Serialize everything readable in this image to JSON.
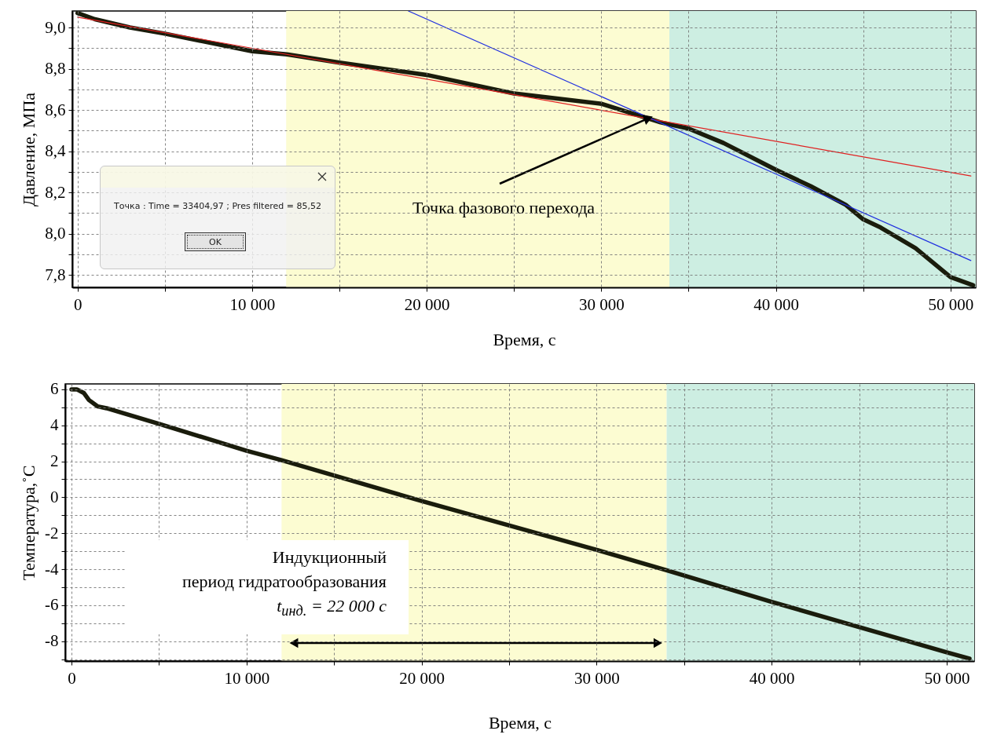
{
  "chart_data": [
    {
      "type": "line",
      "xlabel": "Время, с",
      "ylabel": "Давление, МПа",
      "xlim": [
        -300,
        51450
      ],
      "ylim": [
        7.74,
        9.08
      ],
      "xticks": [
        0,
        {
          "value": 5000,
          "label": null
        },
        {
          "value": 10000,
          "label": "10 000"
        },
        {
          "value": 15000,
          "label": null
        },
        {
          "value": 20000,
          "label": "20 000"
        },
        {
          "value": 25000,
          "label": null
        },
        {
          "value": 30000,
          "label": "30 000"
        },
        {
          "value": 35000,
          "label": null
        },
        {
          "value": 40000,
          "label": "40 000"
        },
        {
          "value": 45000,
          "label": null
        },
        {
          "value": 50000,
          "label": "50 000"
        }
      ],
      "yticks": [
        {
          "value": 7.8,
          "label": "7,8"
        },
        {
          "value": 7.9,
          "label": null
        },
        {
          "value": 8.0,
          "label": "8,0"
        },
        {
          "value": 8.1,
          "label": null
        },
        {
          "value": 8.2,
          "label": "8,2"
        },
        {
          "value": 8.3,
          "label": null
        },
        {
          "value": 8.4,
          "label": "8,4"
        },
        {
          "value": 8.5,
          "label": null
        },
        {
          "value": 8.6,
          "label": "8,6"
        },
        {
          "value": 8.7,
          "label": null
        },
        {
          "value": 8.8,
          "label": "8,8"
        },
        {
          "value": 8.9,
          "label": null
        },
        {
          "value": 9.0,
          "label": "9,0"
        }
      ],
      "grid": true,
      "bands": [
        {
          "axis": "x",
          "from": 11950,
          "to": 33900,
          "color": "#fcfcd2"
        },
        {
          "axis": "x",
          "from": 33900,
          "to": 51450,
          "color": "#cdeee2"
        }
      ],
      "series": [
        {
          "type": "line",
          "color": "#1a1c0c",
          "x": [
            0,
            1000,
            3000,
            5000,
            10000,
            12000,
            15000,
            20000,
            25000,
            30000,
            33400,
            35000,
            37000,
            40000,
            42000,
            44000,
            45000,
            46000,
            48000,
            50000,
            51300
          ],
          "values": [
            9.07,
            9.04,
            9.0,
            8.97,
            8.885,
            8.87,
            8.83,
            8.77,
            8.68,
            8.63,
            8.54,
            8.51,
            8.44,
            8.31,
            8.23,
            8.14,
            8.07,
            8.03,
            7.93,
            7.79,
            7.75
          ]
        },
        {
          "type": "line",
          "color": "#e02020",
          "x": [
            0,
            51170
          ],
          "values": [
            9.05,
            8.28
          ]
        },
        {
          "type": "line",
          "color": "#2030e0",
          "x": [
            18950,
            51170
          ],
          "values": [
            9.08,
            7.87
          ]
        }
      ],
      "annotations": [
        {
          "text": "Точка фазового перехода",
          "x": 32700,
          "y": 8.56
        },
        "Точка : Time = 33404,97 ; Pres filtered = 85,52",
        "OK"
      ]
    },
    {
      "type": "line",
      "xlabel": "Время, с",
      "ylabel": "Температура,˚C",
      "xlim": [
        -360,
        51570
      ],
      "ylim": [
        -9.1,
        6.3
      ],
      "xticks": [
        0,
        {
          "value": 5000,
          "label": null
        },
        {
          "value": 10000,
          "label": "10 000"
        },
        {
          "value": 15000,
          "label": null
        },
        {
          "value": 20000,
          "label": "20 000"
        },
        {
          "value": 25000,
          "label": null
        },
        {
          "value": 30000,
          "label": "30 000"
        },
        {
          "value": 35000,
          "label": null
        },
        {
          "value": 40000,
          "label": "40 000"
        },
        {
          "value": 45000,
          "label": null
        },
        {
          "value": 50000,
          "label": "50 000"
        }
      ],
      "yticks": [
        {
          "value": -9,
          "label": null
        },
        -8,
        {
          "value": -7,
          "label": null
        },
        -6,
        {
          "value": -5,
          "label": null
        },
        -4,
        {
          "value": -3,
          "label": null
        },
        -2,
        {
          "value": -1,
          "label": null
        },
        0,
        {
          "value": 1,
          "label": null
        },
        2,
        {
          "value": 3,
          "label": null
        },
        4,
        {
          "value": 5,
          "label": null
        },
        6
      ],
      "grid": true,
      "bands": [
        {
          "axis": "x",
          "from": 12000,
          "to": 34000,
          "color": "#fcfcd2"
        },
        {
          "axis": "x",
          "from": 34000,
          "to": 51570,
          "color": "#cdeee2"
        }
      ],
      "series": [
        {
          "type": "line",
          "color": "#1a1c0c",
          "x": [
            0,
            300,
            700,
            1000,
            1500,
            2000,
            5000,
            10000,
            12000,
            20000,
            30000,
            34000,
            40000,
            50000,
            51300
          ],
          "values": [
            6.0,
            6.0,
            5.8,
            5.4,
            5.05,
            4.95,
            4.08,
            2.59,
            2.06,
            -0.21,
            -2.92,
            -4.06,
            -5.81,
            -8.61,
            -8.96
          ]
        }
      ],
      "annotations": [
        "Индукционный",
        "период гидратообразования",
        "t$_{инд.}$ = 22 000 с"
      ]
    }
  ]
}
